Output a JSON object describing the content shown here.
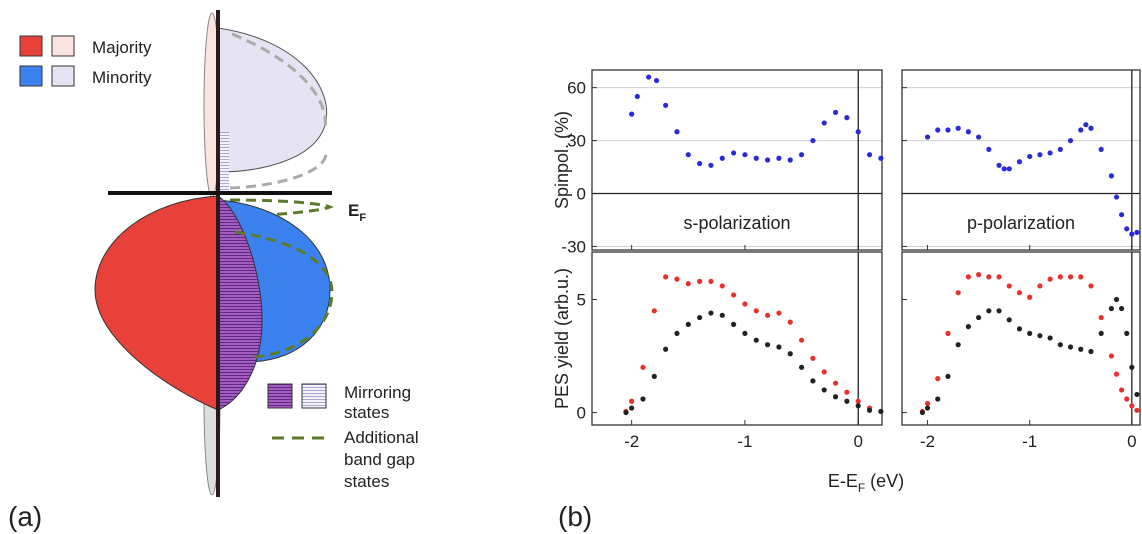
{
  "panel_labels": [
    "(a)",
    "(b)"
  ],
  "diagram": {
    "legend": [
      "Majority",
      "Minority"
    ],
    "fermi": {
      "main": "E",
      "sub": "F"
    },
    "mirroring": [
      "Mirroring",
      "states"
    ],
    "additional": [
      "Additional",
      "band gap",
      "states"
    ]
  },
  "xlabel": {
    "main": "E-E",
    "sub": "F",
    "unit": " (eV)"
  },
  "chart_data": [
    {
      "type": "scatter",
      "ylabel": "Spinpol. (%)",
      "annotation": "s-polarization",
      "x": [
        -2,
        -1.95,
        -1.85,
        -1.78,
        -1.7,
        -1.6,
        -1.5,
        -1.4,
        -1.3,
        -1.2,
        -1.1,
        -1.0,
        -0.9,
        -0.8,
        -0.7,
        -0.6,
        -0.5,
        -0.4,
        -0.3,
        -0.2,
        -0.1,
        0,
        0.1,
        0.2
      ],
      "series": [
        {
          "color": "#2a2ad8",
          "values": [
            45,
            55,
            66,
            64,
            50,
            35,
            22,
            17,
            16,
            20,
            23,
            22,
            20,
            19,
            20,
            19,
            22,
            30,
            40,
            46,
            43,
            35,
            22,
            20
          ]
        }
      ],
      "xlim": [
        -2.35,
        0.21
      ],
      "ylim": [
        -32,
        70
      ],
      "xticks": [
        -2,
        -1,
        0
      ],
      "yticks": [
        -30,
        0,
        30,
        60
      ],
      "grid": true,
      "show_xtick_labels": false,
      "show_ytick_labels": true
    },
    {
      "type": "scatter",
      "ylabel": "PES yield (arb.u.)",
      "x": [
        -2.05,
        -2.0,
        -1.9,
        -1.8,
        -1.7,
        -1.6,
        -1.5,
        -1.4,
        -1.3,
        -1.2,
        -1.1,
        -1.0,
        -0.9,
        -0.8,
        -0.7,
        -0.6,
        -0.5,
        -0.4,
        -0.3,
        -0.2,
        -0.1,
        0,
        0.1,
        0.2
      ],
      "series": [
        {
          "color": "#e8302c",
          "values": [
            0.05,
            0.5,
            2.0,
            4.5,
            6.0,
            5.9,
            5.7,
            5.8,
            5.8,
            5.6,
            5.2,
            4.8,
            4.5,
            4.3,
            4.4,
            4.0,
            3.2,
            2.4,
            1.8,
            1.3,
            0.9,
            0.5,
            0.2,
            0.05
          ]
        },
        {
          "color": "#222222",
          "values": [
            0.0,
            0.2,
            0.6,
            1.6,
            2.8,
            3.5,
            3.9,
            4.2,
            4.4,
            4.3,
            3.9,
            3.5,
            3.2,
            3.0,
            2.9,
            2.6,
            2.0,
            1.4,
            1.0,
            0.7,
            0.5,
            0.3,
            0.1,
            0.05
          ]
        }
      ],
      "xlim": [
        -2.35,
        0.21
      ],
      "ylim": [
        -0.55,
        7.1
      ],
      "xticks": [
        -2,
        -1,
        0
      ],
      "yticks": [
        0,
        5
      ],
      "grid": false,
      "show_xtick_labels": true,
      "show_ytick_labels": true
    },
    {
      "type": "scatter",
      "annotation": "p-polarization",
      "x": [
        -2,
        -1.9,
        -1.8,
        -1.7,
        -1.6,
        -1.5,
        -1.4,
        -1.3,
        -1.25,
        -1.2,
        -1.1,
        -1.0,
        -0.9,
        -0.8,
        -0.7,
        -0.6,
        -0.5,
        -0.45,
        -0.4,
        -0.3,
        -0.2,
        -0.15,
        -0.1,
        -0.05,
        0,
        0.05
      ],
      "series": [
        {
          "color": "#2a2ad8",
          "values": [
            32,
            36,
            36,
            37,
            35,
            32,
            25,
            16,
            14,
            14,
            18,
            21,
            22,
            23,
            25,
            30,
            36,
            39,
            37,
            25,
            10,
            -2,
            -12,
            -20,
            -23,
            -22
          ]
        }
      ],
      "xlim": [
        -2.25,
        0.08
      ],
      "ylim": [
        -32,
        70
      ],
      "xticks": [
        -2,
        -1,
        0
      ],
      "yticks": [
        -30,
        0,
        30,
        60
      ],
      "grid": true,
      "show_xtick_labels": false,
      "show_ytick_labels": false
    },
    {
      "type": "scatter",
      "x": [
        -2.05,
        -2.0,
        -1.9,
        -1.8,
        -1.7,
        -1.6,
        -1.5,
        -1.4,
        -1.3,
        -1.2,
        -1.1,
        -1.0,
        -0.9,
        -0.8,
        -0.7,
        -0.6,
        -0.5,
        -0.4,
        -0.3,
        -0.2,
        -0.15,
        -0.1,
        -0.05,
        0,
        0.05
      ],
      "series": [
        {
          "color": "#e8302c",
          "values": [
            0.05,
            0.4,
            1.5,
            3.5,
            5.3,
            6.0,
            6.1,
            6.0,
            6.0,
            5.6,
            5.3,
            5.1,
            5.6,
            5.9,
            6.0,
            6.0,
            6.0,
            5.6,
            4.2,
            2.5,
            1.7,
            1.0,
            0.6,
            0.3,
            0.1
          ]
        },
        {
          "color": "#222222",
          "values": [
            0,
            0.2,
            0.6,
            1.6,
            3.0,
            3.8,
            4.2,
            4.5,
            4.5,
            4.1,
            3.7,
            3.5,
            3.4,
            3.3,
            3.0,
            2.9,
            2.8,
            2.7,
            3.5,
            4.6,
            5.0,
            4.6,
            3.5,
            2.0,
            0.8
          ]
        }
      ],
      "xlim": [
        -2.25,
        0.08
      ],
      "ylim": [
        -0.55,
        7.1
      ],
      "xticks": [
        -2,
        -1,
        0
      ],
      "yticks": [
        0,
        5
      ],
      "grid": false,
      "show_xtick_labels": true,
      "show_ytick_labels": false
    }
  ]
}
